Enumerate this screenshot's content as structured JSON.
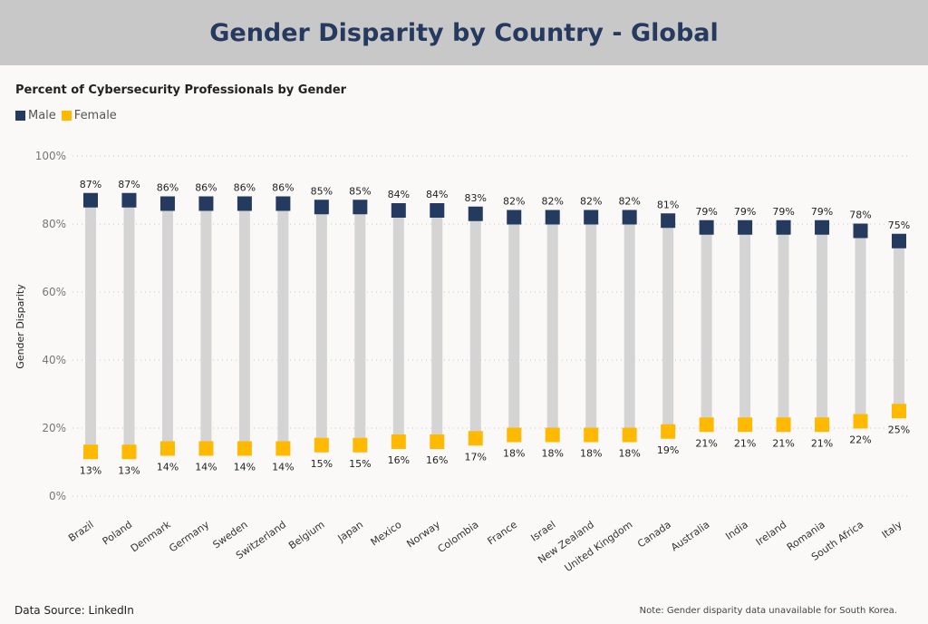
{
  "header": {
    "title": "Gender Disparity by Country - Global"
  },
  "footer": {
    "source": "Data Source: LinkedIn",
    "note": "Note: Gender disparity data unavailable for South Korea."
  },
  "chart_data": {
    "type": "dot-range",
    "title": "Percent of Cybersecurity Professionals by Gender",
    "xlabel": "",
    "ylabel": "Gender Disparity",
    "ylim": [
      0,
      100
    ],
    "yticks": [
      "0%",
      "20%",
      "40%",
      "60%",
      "80%",
      "100%"
    ],
    "grid": true,
    "legend_position": "top-left",
    "categories": [
      "Brazil",
      "Poland",
      "Denmark",
      "Germany",
      "Sweden",
      "Switzerland",
      "Belgium",
      "Japan",
      "Mexico",
      "Norway",
      "Colombia",
      "France",
      "Israel",
      "New Zealand",
      "United Kingdom",
      "Canada",
      "Australia",
      "India",
      "Ireland",
      "Romania",
      "South Africa",
      "Italy"
    ],
    "series": [
      {
        "name": "Male",
        "color": "#243a5e",
        "values": [
          87,
          87,
          86,
          86,
          86,
          86,
          85,
          85,
          84,
          84,
          83,
          82,
          82,
          82,
          82,
          81,
          79,
          79,
          79,
          79,
          78,
          75
        ]
      },
      {
        "name": "Female",
        "color": "#ffb900",
        "values": [
          13,
          13,
          14,
          14,
          14,
          14,
          15,
          15,
          16,
          16,
          17,
          18,
          18,
          18,
          18,
          19,
          21,
          21,
          21,
          21,
          22,
          25
        ]
      }
    ],
    "range_bar_color": "#d4d4d4"
  }
}
